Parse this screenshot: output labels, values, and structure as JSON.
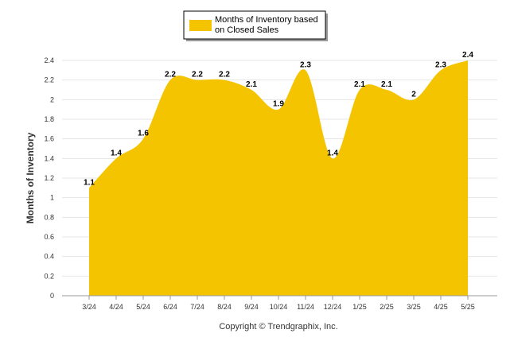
{
  "chart_data": {
    "type": "area",
    "categories": [
      "3/24",
      "4/24",
      "5/24",
      "6/24",
      "7/24",
      "8/24",
      "9/24",
      "10/24",
      "11/24",
      "12/24",
      "1/25",
      "2/25",
      "3/25",
      "4/25",
      "5/25"
    ],
    "series": [
      {
        "name": "Months of Inventory based on Closed Sales",
        "values": [
          1.1,
          1.4,
          1.6,
          2.2,
          2.2,
          2.2,
          2.1,
          1.9,
          2.3,
          1.4,
          2.1,
          2.1,
          2,
          2.3,
          2.4
        ],
        "data_labels": [
          "1.1",
          "1.4",
          "1.6",
          "2.2",
          "2.2",
          "2.2",
          "2.1",
          "1.9",
          "2.3",
          "1.4",
          "2.1",
          "2.1",
          "2",
          "2.3",
          "2.4"
        ],
        "color": "#f5c400"
      }
    ],
    "legend_lines": [
      "Months of Inventory based",
      "on Closed Sales"
    ],
    "ylabel": "Months of Inventory",
    "xlabel": "",
    "ylim": [
      0,
      2.4
    ],
    "yticks": [
      "0",
      "0.2",
      "0.4",
      "0.6",
      "0.8",
      "1",
      "1.2",
      "1.4",
      "1.6",
      "1.8",
      "2",
      "2.2",
      "2.4"
    ],
    "grid": true,
    "legend_position": "top-center"
  },
  "footer": {
    "copyright": "Copyright © Trendgraphix, Inc."
  },
  "colors": {
    "area": "#f5c400",
    "grid": "#e4e4e4",
    "axis": "#999999"
  }
}
